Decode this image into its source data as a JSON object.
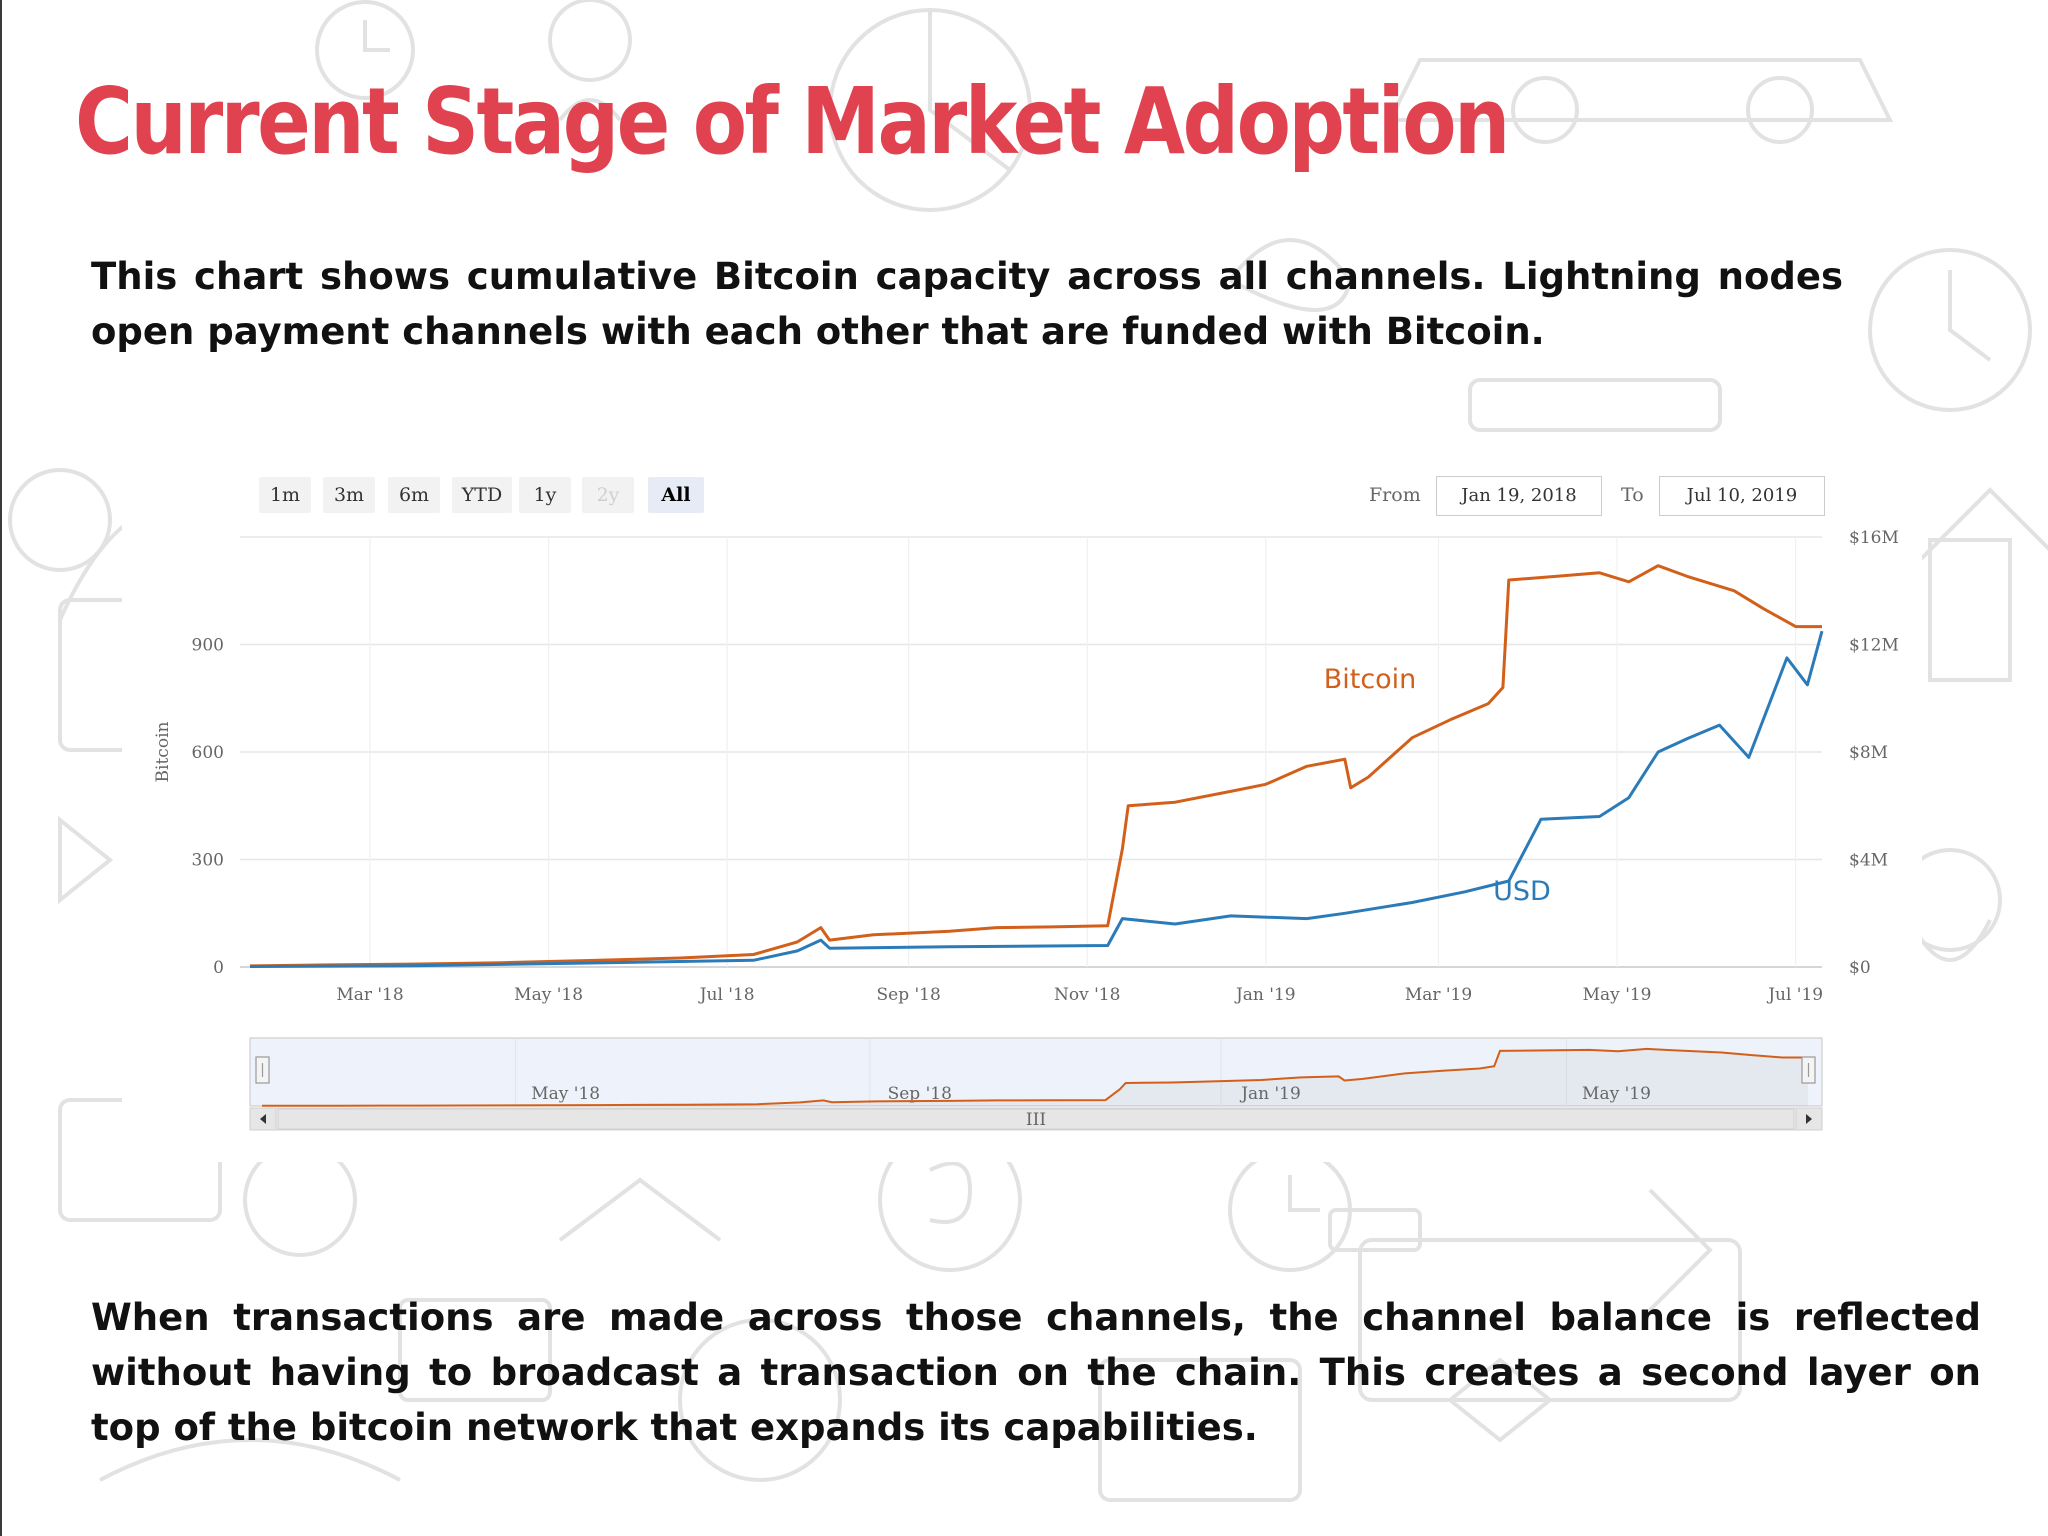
{
  "slide": {
    "title": "Current Stage of Market Adoption",
    "intro": "This chart shows cumulative Bitcoin capacity across all channels. Lightning nodes open payment channels with each other that are funded with Bitcoin.",
    "outro": "When transactions are made across those channels, the channel balance is reflected without having to broadcast a transaction on the chain. This creates a second layer on top of the bitcoin network that expands its capabilities."
  },
  "controls": {
    "range_buttons": [
      {
        "label": "1m",
        "state": "normal"
      },
      {
        "label": "3m",
        "state": "normal"
      },
      {
        "label": "6m",
        "state": "normal"
      },
      {
        "label": "YTD",
        "state": "normal"
      },
      {
        "label": "1y",
        "state": "normal"
      },
      {
        "label": "2y",
        "state": "disabled"
      },
      {
        "label": "All",
        "state": "selected"
      }
    ],
    "from_label": "From",
    "from_value": "Jan 19, 2018",
    "to_label": "To",
    "to_value": "Jul 10, 2019"
  },
  "chart_data": {
    "type": "line",
    "title": "",
    "ylabel": "Bitcoin",
    "ylabel_right": "",
    "x_tick_labels": [
      "Mar '18",
      "May '18",
      "Jul '18",
      "Sep '18",
      "Nov '18",
      "Jan '19",
      "Mar '19",
      "May '19",
      "Jul '19"
    ],
    "y_left": {
      "ticks": [
        0,
        300,
        600,
        900
      ],
      "tick_labels": [
        "0",
        "300",
        "600",
        "900"
      ],
      "range": [
        0,
        1200
      ]
    },
    "y_right": {
      "ticks": [
        0,
        4,
        8,
        12,
        16
      ],
      "tick_labels": [
        "$0",
        "$4M",
        "$8M",
        "$12M",
        "$16M"
      ],
      "range": [
        0,
        16
      ],
      "unit": "millions USD"
    },
    "grid": true,
    "legend": "inline labels",
    "navigator": {
      "tick_labels": [
        "May '18",
        "Sep '18",
        "Jan '19",
        "May '19"
      ],
      "scrollbar_grip": "III"
    },
    "series": [
      {
        "name": "Bitcoin",
        "axis": "left",
        "color": "#d2601a",
        "points": [
          [
            "2018-01-19",
            3
          ],
          [
            "2018-02-15",
            6
          ],
          [
            "2018-03-15",
            8
          ],
          [
            "2018-04-15",
            12
          ],
          [
            "2018-05-15",
            18
          ],
          [
            "2018-06-15",
            25
          ],
          [
            "2018-07-10",
            35
          ],
          [
            "2018-07-25",
            70
          ],
          [
            "2018-08-02",
            110
          ],
          [
            "2018-08-05",
            75
          ],
          [
            "2018-08-20",
            90
          ],
          [
            "2018-09-15",
            100
          ],
          [
            "2018-10-01",
            110
          ],
          [
            "2018-10-20",
            112
          ],
          [
            "2018-11-08",
            115
          ],
          [
            "2018-11-13",
            330
          ],
          [
            "2018-11-15",
            450
          ],
          [
            "2018-12-01",
            460
          ],
          [
            "2018-12-20",
            490
          ],
          [
            "2019-01-01",
            510
          ],
          [
            "2019-01-15",
            560
          ],
          [
            "2019-01-28",
            580
          ],
          [
            "2019-01-30",
            500
          ],
          [
            "2019-02-05",
            530
          ],
          [
            "2019-02-20",
            640
          ],
          [
            "2019-03-05",
            690
          ],
          [
            "2019-03-18",
            735
          ],
          [
            "2019-03-23",
            780
          ],
          [
            "2019-03-25",
            1080
          ],
          [
            "2019-04-10",
            1090
          ],
          [
            "2019-04-25",
            1100
          ],
          [
            "2019-05-05",
            1075
          ],
          [
            "2019-05-15",
            1120
          ],
          [
            "2019-05-25",
            1090
          ],
          [
            "2019-06-10",
            1050
          ],
          [
            "2019-06-20",
            1000
          ],
          [
            "2019-07-01",
            950
          ],
          [
            "2019-07-10",
            950
          ]
        ]
      },
      {
        "name": "USD",
        "axis": "right",
        "color": "#2b7bb9",
        "points": [
          [
            "2018-01-19",
            0.02
          ],
          [
            "2018-03-15",
            0.05
          ],
          [
            "2018-05-15",
            0.15
          ],
          [
            "2018-07-10",
            0.25
          ],
          [
            "2018-07-25",
            0.6
          ],
          [
            "2018-08-02",
            1.0
          ],
          [
            "2018-08-05",
            0.7
          ],
          [
            "2018-09-15",
            0.75
          ],
          [
            "2018-11-08",
            0.8
          ],
          [
            "2018-11-13",
            1.8
          ],
          [
            "2018-12-01",
            1.6
          ],
          [
            "2018-12-20",
            1.9
          ],
          [
            "2019-01-15",
            1.8
          ],
          [
            "2019-01-28",
            2.0
          ],
          [
            "2019-02-20",
            2.4
          ],
          [
            "2019-03-10",
            2.8
          ],
          [
            "2019-03-25",
            3.2
          ],
          [
            "2019-04-05",
            5.5
          ],
          [
            "2019-04-25",
            5.6
          ],
          [
            "2019-05-05",
            6.3
          ],
          [
            "2019-05-15",
            8.0
          ],
          [
            "2019-05-25",
            8.5
          ],
          [
            "2019-06-05",
            9.0
          ],
          [
            "2019-06-15",
            7.8
          ],
          [
            "2019-06-28",
            11.5
          ],
          [
            "2019-07-05",
            10.5
          ],
          [
            "2019-07-10",
            12.5
          ]
        ]
      }
    ]
  }
}
